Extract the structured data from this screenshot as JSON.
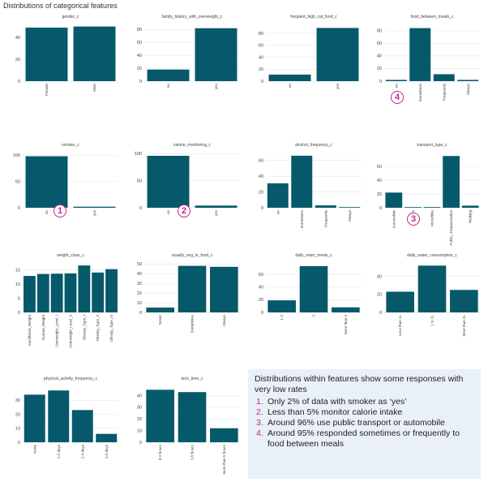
{
  "page": {
    "title": "Distributions of categorical features"
  },
  "style": {
    "bar_color": "#06596b",
    "grid_color": "#e6e6e6",
    "marker_color": "#c0288a",
    "callout_bg": "#e9f0f8"
  },
  "chart_data": [
    {
      "type": "bar",
      "title": "gender_c",
      "categories": [
        "Female",
        "Male"
      ],
      "values": [
        49,
        50
      ],
      "ylim": [
        0,
        52
      ],
      "yticks": [
        0,
        20,
        40
      ]
    },
    {
      "type": "bar",
      "title": "family_history_with_overweight_c",
      "categories": [
        "no",
        "yes"
      ],
      "values": [
        18,
        82
      ],
      "ylim": [
        0,
        88
      ],
      "yticks": [
        0,
        20,
        40,
        60,
        80
      ]
    },
    {
      "type": "bar",
      "title": "frequent_high_cal_food_c",
      "categories": [
        "no",
        "yes"
      ],
      "values": [
        11,
        89
      ],
      "ylim": [
        0,
        95
      ],
      "yticks": [
        0,
        20,
        40,
        60,
        80
      ]
    },
    {
      "type": "bar",
      "title": "food_between_meals_c",
      "categories": [
        "no",
        "Sometimes",
        "Frequently",
        "Always"
      ],
      "values": [
        2,
        84,
        11,
        2
      ],
      "ylim": [
        0,
        90
      ],
      "yticks": [
        0,
        20,
        40,
        60,
        80
      ]
    },
    {
      "type": "bar",
      "title": "smoker_c",
      "categories": [
        "no",
        "yes"
      ],
      "values": [
        98,
        2
      ],
      "ylim": [
        0,
        105
      ],
      "yticks": [
        0,
        50,
        100
      ]
    },
    {
      "type": "bar",
      "title": "calorie_monitoring_c",
      "categories": [
        "no",
        "yes"
      ],
      "values": [
        96,
        4
      ],
      "ylim": [
        0,
        102
      ],
      "yticks": [
        0,
        50,
        100
      ]
    },
    {
      "type": "bar",
      "title": "alcohol_frequency_c",
      "categories": [
        "no",
        "Sometimes",
        "Frequently",
        "Always"
      ],
      "values": [
        31,
        66,
        3,
        0.5
      ],
      "ylim": [
        0,
        70
      ],
      "yticks": [
        0,
        20,
        40,
        60
      ]
    },
    {
      "type": "bar",
      "title": "transport_type_c",
      "categories": [
        "Automobile",
        "Bike",
        "Motorbike",
        "Public_Transportation",
        "Walking"
      ],
      "values": [
        22,
        0.5,
        1,
        75,
        3
      ],
      "ylim": [
        0,
        80
      ],
      "yticks": [
        0,
        20,
        40,
        60
      ]
    },
    {
      "type": "bar",
      "title": "weight_class_c",
      "categories": [
        "Insufficient_Weight",
        "Normal_Weight",
        "Overweight_Level_I",
        "Overweight_Level_II",
        "Obesity_Type_I",
        "Obesity_Type_II",
        "Obesity_Type_III"
      ],
      "values": [
        12.9,
        13.6,
        13.7,
        13.8,
        16.6,
        14.1,
        15.3
      ],
      "ylim": [
        0,
        17.5
      ],
      "yticks": [
        0,
        5,
        10,
        15
      ]
    },
    {
      "type": "bar",
      "title": "usually_veg_in_food_c",
      "categories": [
        "Never",
        "Sometimes",
        "Always"
      ],
      "values": [
        5,
        48,
        47
      ],
      "ylim": [
        0,
        51
      ],
      "yticks": [
        0,
        10,
        20,
        30,
        40,
        50
      ]
    },
    {
      "type": "bar",
      "title": "daily_main_meals_c",
      "categories": [
        "1-2",
        "3",
        "More than 3"
      ],
      "values": [
        19,
        73,
        8
      ],
      "ylim": [
        0,
        78
      ],
      "yticks": [
        0,
        20,
        40,
        60
      ]
    },
    {
      "type": "bar",
      "title": "daily_water_consumption_c",
      "categories": [
        "Less than 1L",
        "1 to 2L",
        "More than 2L"
      ],
      "values": [
        23,
        52,
        25
      ],
      "ylim": [
        0,
        55
      ],
      "yticks": [
        0,
        20,
        40
      ]
    },
    {
      "type": "bar",
      "title": "physical_activity_frequency_c",
      "categories": [
        "None",
        "1-2 days",
        "2-4 days",
        "4-5 days"
      ],
      "values": [
        34,
        37,
        23,
        6
      ],
      "ylim": [
        0,
        40
      ],
      "yticks": [
        0,
        10,
        20,
        30
      ]
    },
    {
      "type": "bar",
      "title": "tech_time_c",
      "categories": [
        "0-2 hours",
        "3-5 hours",
        "more than 5 hours"
      ],
      "values": [
        45,
        43,
        12
      ],
      "ylim": [
        0,
        48
      ],
      "yticks": [
        0,
        10,
        20,
        30,
        40
      ]
    }
  ],
  "markers": [
    "4",
    "1",
    "2",
    "3"
  ],
  "callout": {
    "heading": "Distributions within features show some responses with very low rates",
    "items": [
      {
        "num": "1.",
        "text": "Only 2% of data with smoker as ‘yes’"
      },
      {
        "num": "2.",
        "text": "Less than 5% monitor calorie intake"
      },
      {
        "num": "3.",
        "text": "Around 96% use public transport or automobile"
      },
      {
        "num": "4.",
        "text": "Around 95% responded sometimes or frequently to food between meals"
      }
    ]
  }
}
